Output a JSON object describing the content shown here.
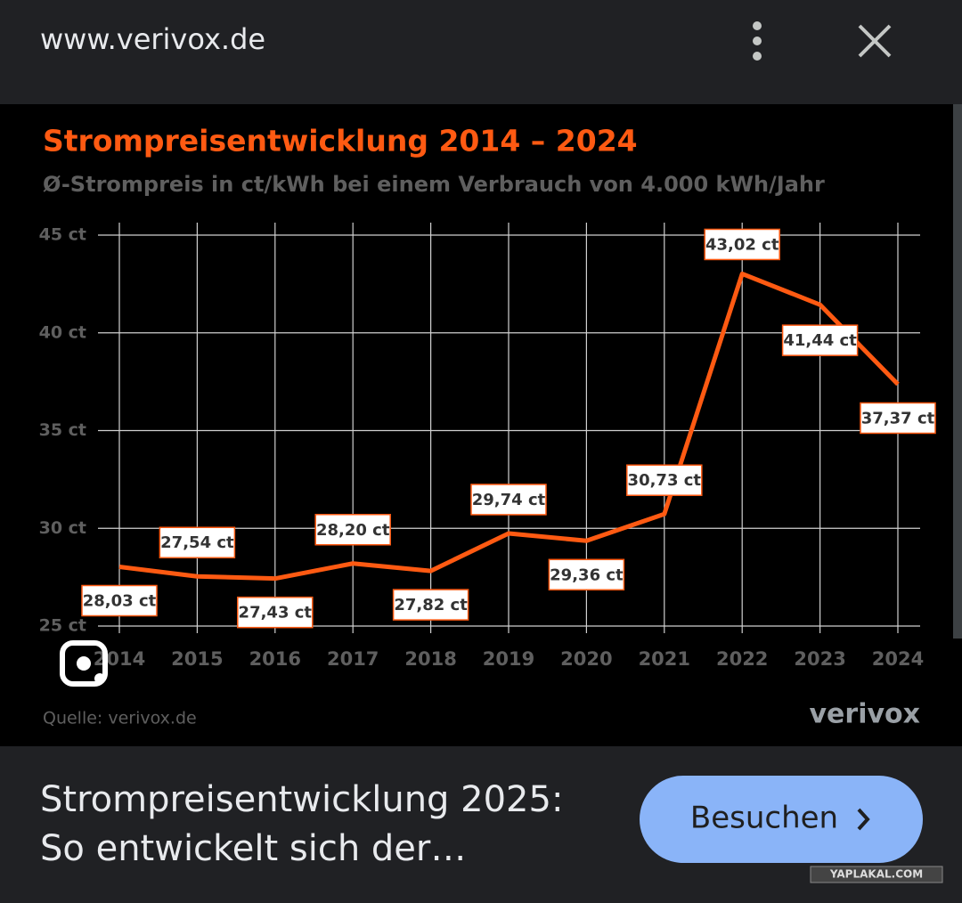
{
  "header": {
    "url": "www.verivox.de"
  },
  "chart_data": {
    "type": "line",
    "title": "Strompreisentwicklung 2014 – 2024",
    "subtitle": "Ø-Strompreis in ct/kWh bei einem Verbrauch von 4.000 kWh/Jahr",
    "categories": [
      "2014",
      "2015",
      "2016",
      "2017",
      "2018",
      "2019",
      "2020",
      "2021",
      "2022",
      "2023",
      "2024"
    ],
    "values": [
      28.03,
      27.54,
      27.43,
      28.2,
      27.82,
      29.74,
      29.36,
      30.73,
      43.02,
      41.44,
      37.37
    ],
    "value_labels": [
      "28,03 ct",
      "27,54 ct",
      "27,43 ct",
      "28,20 ct",
      "27,82 ct",
      "29,74 ct",
      "29,36 ct",
      "30,73 ct",
      "43,02 ct",
      "41,44 ct",
      "37,37 ct"
    ],
    "color": "#ff5a12",
    "ylim": [
      25,
      45
    ],
    "yticks": [
      {
        "value": 25,
        "label": "25 ct"
      },
      {
        "value": 30,
        "label": "30 ct"
      },
      {
        "value": 35,
        "label": "35 ct"
      },
      {
        "value": 40,
        "label": "40 ct"
      },
      {
        "value": 45,
        "label": "45 ct"
      }
    ],
    "grid": true,
    "source": "Quelle: verivox.de",
    "logo": "verivox"
  },
  "result": {
    "title_line1": "Strompreisentwicklung 2025:",
    "title_line2": "So entwickelt sich der…",
    "button": "Besuchen"
  },
  "watermark": "YAPLAKAL.COM"
}
